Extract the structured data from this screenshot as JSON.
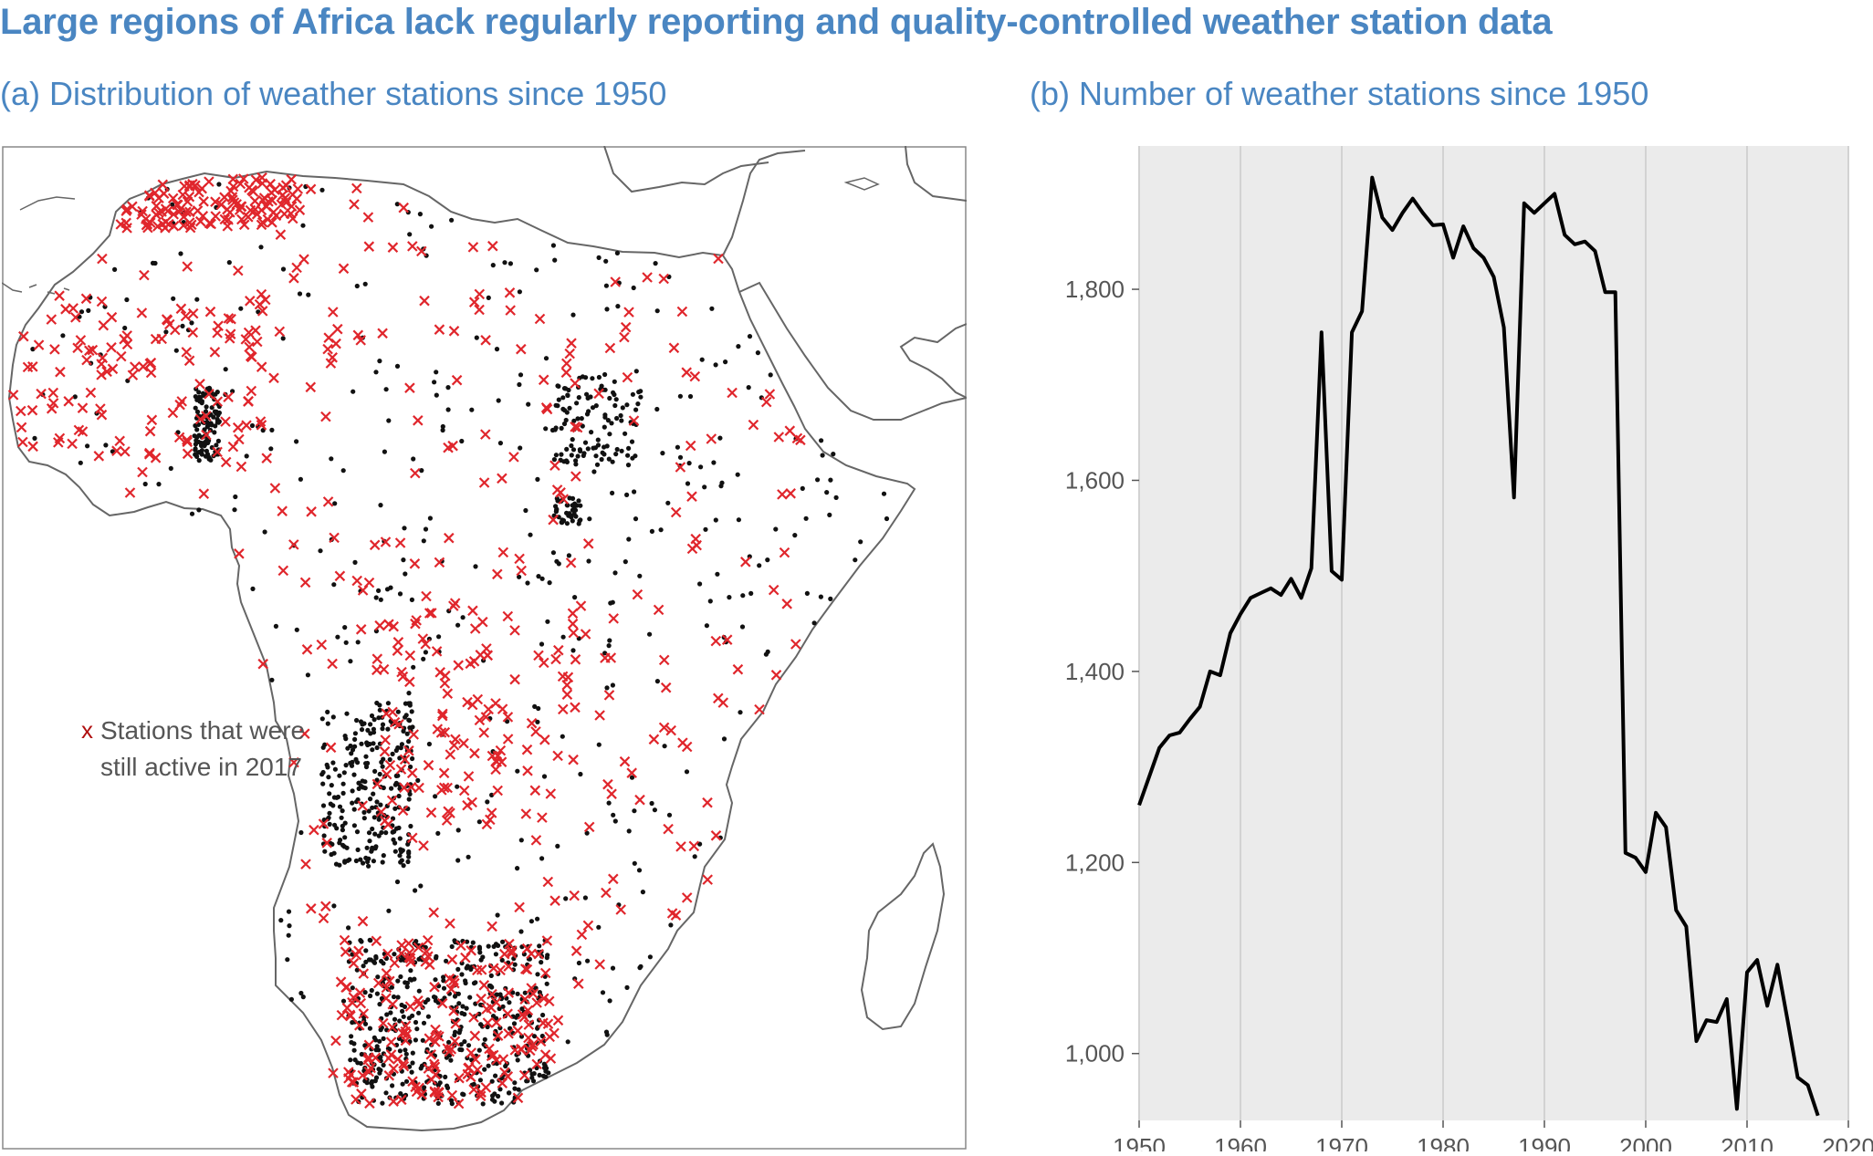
{
  "title": "Large regions of Africa lack regularly reporting and quality-controlled weather station data",
  "panel_a": {
    "title": "(a) Distribution of weather stations since 1950",
    "legend_marker": "x",
    "legend_line1": "Stations that were",
    "legend_line2": "still active in 2017",
    "colors": {
      "active_station": "#e0262c",
      "inactive_station": "#111111",
      "coastline": "#666666",
      "frame": "#888888"
    }
  },
  "panel_b": {
    "title": "(b) Number of weather stations since 1950"
  },
  "chart_data": [
    {
      "type": "scatter",
      "title": "(a) Distribution of weather stations since 1950",
      "series": [
        {
          "name": "Stations that were still active in 2017",
          "marker": "x",
          "color": "#e0262c"
        }
      ]
    },
    {
      "type": "line",
      "title": "(b) Number of weather stations since 1950",
      "xlabel": "",
      "ylabel": "",
      "xlim": [
        1950,
        2020
      ],
      "ylim": [
        930,
        1950
      ],
      "xticks": [
        1950,
        1960,
        1970,
        1980,
        1990,
        2000,
        2010,
        2020
      ],
      "yticks": [
        1000,
        1200,
        1400,
        1600,
        1800
      ],
      "ytick_labels": [
        "1,000",
        "1,200",
        "1,400",
        "1,600",
        "1,800"
      ],
      "grid": "vertical",
      "background": "#ebebeb",
      "line_color": "#000000",
      "series": [
        {
          "x": [
            1950,
            1951,
            1952,
            1953,
            1954,
            1955,
            1956,
            1957,
            1958,
            1959,
            1960,
            1961,
            1962,
            1963,
            1964,
            1965,
            1966,
            1967,
            1968,
            1969,
            1970,
            1971,
            1972,
            1973,
            1974,
            1975,
            1976,
            1977,
            1978,
            1979,
            1980,
            1981,
            1982,
            1983,
            1984,
            1985,
            1986,
            1987,
            1988,
            1989,
            1990,
            1991,
            1992,
            1993,
            1994,
            1995,
            1996,
            1997,
            1998,
            1999,
            2000,
            2001,
            2002,
            2003,
            2004,
            2005,
            2006,
            2007,
            2008,
            2009,
            2010,
            2011,
            2012,
            2013,
            2014,
            2015,
            2016,
            2017
          ],
          "values": [
            1260,
            1290,
            1320,
            1333,
            1336,
            1350,
            1363,
            1400,
            1396,
            1440,
            1460,
            1477,
            1482,
            1487,
            1480,
            1497,
            1477,
            1508,
            1755,
            1505,
            1496,
            1755,
            1777,
            1917,
            1875,
            1862,
            1880,
            1895,
            1880,
            1867,
            1868,
            1833,
            1866,
            1843,
            1833,
            1813,
            1760,
            1582,
            1890,
            1880,
            1890,
            1900,
            1857,
            1847,
            1850,
            1840,
            1797,
            1797,
            1210,
            1205,
            1190,
            1252,
            1237,
            1150,
            1133,
            1013,
            1035,
            1033,
            1057,
            942,
            1085,
            1098,
            1050,
            1093,
            1035,
            975,
            967,
            935
          ]
        }
      ]
    }
  ]
}
